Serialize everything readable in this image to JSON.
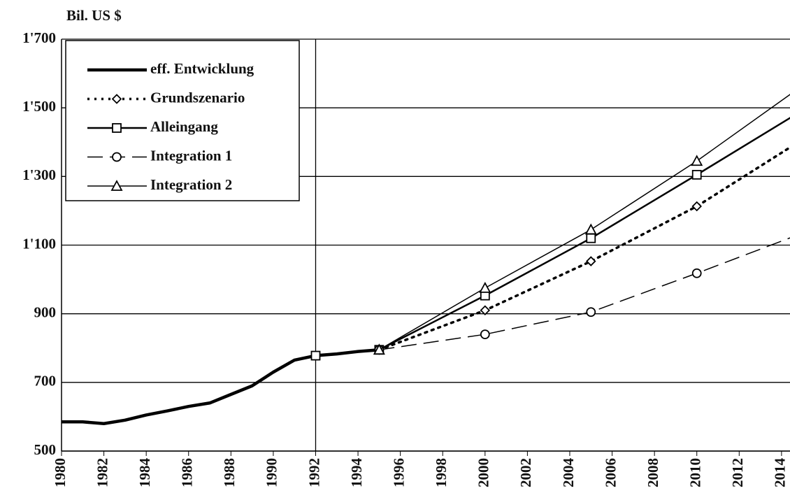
{
  "chart_data": {
    "type": "line",
    "y_label": "Bil. US $",
    "xlim": [
      1980,
      2014.4
    ],
    "ylim": [
      500,
      1700
    ],
    "xticks": [
      1980,
      1982,
      1984,
      1986,
      1988,
      1990,
      1992,
      1994,
      1996,
      1998,
      2000,
      2002,
      2004,
      2006,
      2008,
      2010,
      2012,
      2014
    ],
    "yticks": [
      {
        "value": 500,
        "label": "500"
      },
      {
        "value": 700,
        "label": "700"
      },
      {
        "value": 900,
        "label": "900"
      },
      {
        "value": 1100,
        "label": "1'100"
      },
      {
        "value": 1300,
        "label": "1'300"
      },
      {
        "value": 1500,
        "label": "1'500"
      },
      {
        "value": 1700,
        "label": "1'700"
      }
    ],
    "grid": true,
    "vline": 1992,
    "legend": "upper left",
    "series": [
      {
        "name": "eff. Entwicklung",
        "color": "#000",
        "width": 4.5,
        "dash": "none",
        "marker": "none",
        "x": [
          1980,
          1981,
          1982,
          1983,
          1984,
          1985,
          1986,
          1987,
          1988,
          1989,
          1990,
          1991,
          1992,
          1993,
          1994,
          1995
        ],
        "values": [
          585,
          585,
          580,
          590,
          605,
          617,
          630,
          640,
          665,
          690,
          730,
          765,
          778,
          783,
          790,
          795
        ]
      },
      {
        "name": "Grundszenario",
        "color": "#000",
        "width": 3.5,
        "dash": "3 7",
        "marker": "diamond",
        "x": [
          1995,
          2000,
          2005,
          2010,
          2015
        ],
        "values": [
          795,
          910,
          1053,
          1213,
          1408
        ]
      },
      {
        "name": "Alleingang",
        "color": "#000",
        "width": 2.5,
        "dash": "none",
        "marker": "square",
        "x": [
          1992,
          1995,
          2000,
          2005,
          2010,
          2015
        ],
        "values": [
          778,
          795,
          953,
          1120,
          1305,
          1493
        ]
      },
      {
        "name": "Integration 1",
        "color": "#000",
        "width": 1.5,
        "dash": "22 10",
        "marker": "circle",
        "x": [
          1995,
          2000,
          2005,
          2010,
          2015
        ],
        "values": [
          795,
          840,
          905,
          1018,
          1135
        ]
      },
      {
        "name": "Integration 2",
        "color": "#000",
        "width": 1.5,
        "dash": "none",
        "marker": "triangle",
        "x": [
          1995,
          2000,
          2005,
          2010,
          2015
        ],
        "values": [
          795,
          975,
          1145,
          1345,
          1565
        ]
      }
    ]
  }
}
